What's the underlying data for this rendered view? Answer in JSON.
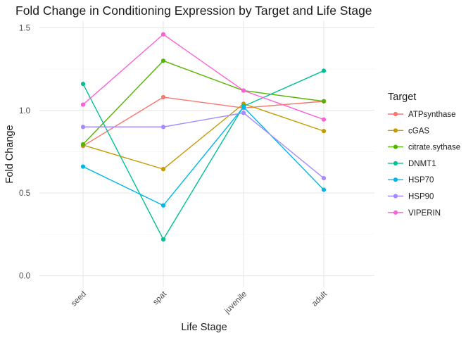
{
  "chart_data": {
    "type": "line",
    "title": "Fold Change in Conditioning Expression by Target and Life Stage",
    "xlabel": "Life Stage",
    "ylabel": "Fold Change",
    "categories": [
      "seed",
      "spat",
      "juvenile",
      "adult"
    ],
    "ylim": [
      -0.07,
      1.54
    ],
    "yticks": [
      0.0,
      0.5,
      1.0,
      1.5
    ],
    "ytick_labels": [
      "0.0",
      "0.5",
      "1.0",
      "1.5"
    ],
    "grid": true,
    "legend": {
      "title": "Target",
      "position": "right"
    },
    "series": [
      {
        "name": "ATPsynthase",
        "color": "#F8766D",
        "values": [
          0.785,
          1.08,
          1.015,
          1.055
        ]
      },
      {
        "name": "cGAS",
        "color": "#C49A00",
        "values": [
          0.79,
          0.645,
          1.04,
          0.875
        ]
      },
      {
        "name": "citrate.sythase",
        "color": "#53B400",
        "values": [
          0.795,
          1.3,
          1.12,
          1.055
        ]
      },
      {
        "name": "DNMT1",
        "color": "#00C094",
        "values": [
          1.16,
          0.22,
          1.025,
          1.24
        ]
      },
      {
        "name": "HSP70",
        "color": "#00B6EB",
        "values": [
          0.66,
          0.425,
          1.02,
          0.52
        ]
      },
      {
        "name": "HSP90",
        "color": "#A58AFF",
        "values": [
          0.9,
          0.9,
          0.985,
          0.59
        ]
      },
      {
        "name": "VIPERIN",
        "color": "#FB61D7",
        "values": [
          1.035,
          1.46,
          1.12,
          0.945
        ]
      }
    ]
  }
}
